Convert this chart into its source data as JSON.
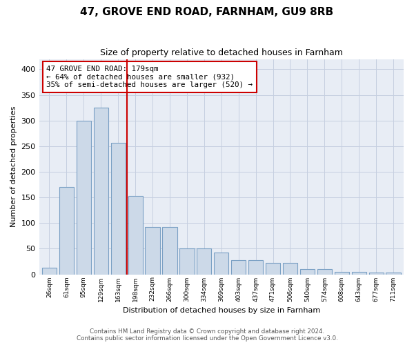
{
  "title": "47, GROVE END ROAD, FARNHAM, GU9 8RB",
  "subtitle": "Size of property relative to detached houses in Farnham",
  "xlabel": "Distribution of detached houses by size in Farnham",
  "ylabel": "Number of detached properties",
  "bin_labels": [
    "26sqm",
    "61sqm",
    "95sqm",
    "129sqm",
    "163sqm",
    "198sqm",
    "232sqm",
    "266sqm",
    "300sqm",
    "334sqm",
    "369sqm",
    "403sqm",
    "437sqm",
    "471sqm",
    "506sqm",
    "540sqm",
    "574sqm",
    "608sqm",
    "643sqm",
    "677sqm",
    "711sqm"
  ],
  "bar_heights": [
    13,
    170,
    300,
    325,
    257,
    153,
    92,
    92,
    50,
    50,
    43,
    28,
    28,
    22,
    22,
    10,
    10,
    5,
    5,
    3,
    3
  ],
  "bar_color": "#ccd9e8",
  "bar_edge_color": "#7aa0c4",
  "grid_color": "#c5cfe0",
  "background_color": "#e8edf5",
  "vline_color": "#cc0000",
  "annotation_text": "47 GROVE END ROAD: 179sqm\n← 64% of detached houses are smaller (932)\n35% of semi-detached houses are larger (520) →",
  "annotation_box_edge": "#cc0000",
  "footer_text": "Contains HM Land Registry data © Crown copyright and database right 2024.\nContains public sector information licensed under the Open Government Licence v3.0.",
  "ylim": [
    0,
    420
  ],
  "yticks": [
    0,
    50,
    100,
    150,
    200,
    250,
    300,
    350,
    400
  ],
  "vline_pos": 4.5,
  "annot_bar_index": 4
}
